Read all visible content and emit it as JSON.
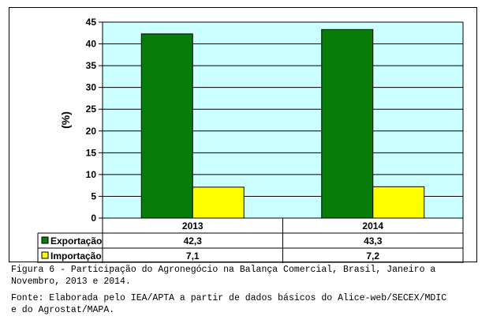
{
  "chart_data": {
    "type": "bar",
    "ylabel": "(%)",
    "ylim": [
      0,
      45
    ],
    "y_ticks": [
      0,
      5,
      10,
      15,
      20,
      25,
      30,
      35,
      40,
      45
    ],
    "grid": true,
    "legend": "data-table-below",
    "categories": [
      "2013",
      "2014"
    ],
    "series": [
      {
        "name": "Exportação",
        "values": [
          42.3,
          43.3
        ],
        "labels": [
          "42,3",
          "43,3"
        ],
        "color": "#087c08"
      },
      {
        "name": "Importação",
        "values": [
          7.1,
          7.2
        ],
        "labels": [
          "7,1",
          "7,2"
        ],
        "color": "#ffff00"
      }
    ]
  },
  "plot_background": "#ccffff",
  "caption_line1": "Figura 6 - Participação do Agronegócio na Balança Comercial, Brasil, Janeiro a",
  "caption_line2": "Novembro, 2013 e 2014.",
  "source_line1": "Fonte: Elaborada pelo IEA/APTA a partir de dados básicos do Alice-web/SECEX/MDIC",
  "source_line2": "e do Agrostat/MAPA."
}
